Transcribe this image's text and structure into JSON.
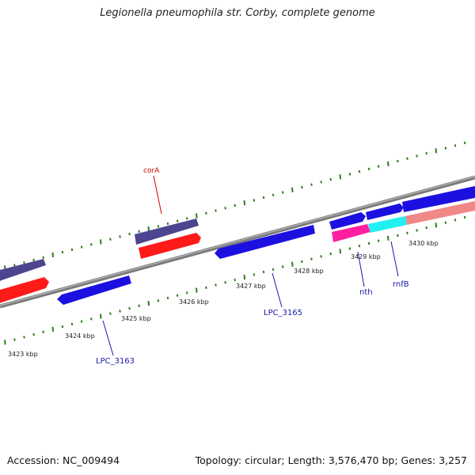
{
  "title": "Legionella pneumophila str. Corby, complete genome",
  "footer": {
    "accession": "Accession: NC_009494",
    "stats": "Topology: circular; Length: 3,576,470 bp; Genes: 3,257"
  },
  "colors": {
    "backbone": "#8a8a8a",
    "tick": "#2e7d1e",
    "cds": "#1c10e0",
    "gene_purple": "#4d4590",
    "gene_red": "#ff1a1a",
    "magenta": "#ff1fa0",
    "cyan": "#22f0f0",
    "salmon": "#f08888",
    "label_red": "#d40000",
    "label_blue": "#1a1aa8"
  },
  "scale_labels": [
    "3423 kbp",
    "3424 kbp",
    "3425 kbp",
    "3426 kbp",
    "3427 kbp",
    "3428 kbp",
    "3429 kbp",
    "3430 kbp"
  ],
  "gene_labels": [
    "corA",
    "LPC_3163",
    "LPC_3165",
    "nth",
    "rnfB"
  ]
}
